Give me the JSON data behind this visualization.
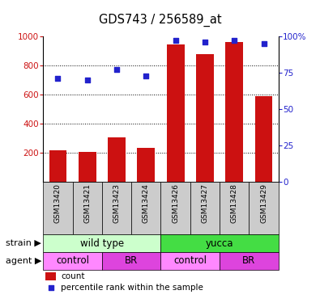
{
  "title": "GDS743 / 256589_at",
  "samples": [
    "GSM13420",
    "GSM13421",
    "GSM13423",
    "GSM13424",
    "GSM13426",
    "GSM13427",
    "GSM13428",
    "GSM13429"
  ],
  "counts": [
    215,
    205,
    305,
    235,
    945,
    880,
    960,
    590
  ],
  "percentile_ranks": [
    71,
    70,
    77,
    73,
    97,
    96,
    97,
    95
  ],
  "ylim_left": [
    0,
    1000
  ],
  "ylim_right": [
    0,
    100
  ],
  "yticks_left": [
    200,
    400,
    600,
    800,
    1000
  ],
  "yticks_right": [
    0,
    25,
    50,
    75,
    100
  ],
  "grid_lines": [
    200,
    400,
    600,
    800
  ],
  "strain_labels": [
    {
      "label": "wild type",
      "start": 0,
      "end": 4,
      "color": "#ccffcc"
    },
    {
      "label": "yucca",
      "start": 4,
      "end": 8,
      "color": "#44dd44"
    }
  ],
  "agent_labels": [
    {
      "label": "control",
      "start": 0,
      "end": 2,
      "color": "#ff88ff"
    },
    {
      "label": "BR",
      "start": 2,
      "end": 4,
      "color": "#dd44dd"
    },
    {
      "label": "control",
      "start": 4,
      "end": 6,
      "color": "#ff88ff"
    },
    {
      "label": "BR",
      "start": 6,
      "end": 8,
      "color": "#dd44dd"
    }
  ],
  "bar_color": "#cc1111",
  "dot_color": "#2222cc",
  "tick_color_left": "#cc1111",
  "tick_color_right": "#2222cc",
  "sample_bg_color": "#cccccc",
  "legend_count_color": "#cc1111",
  "legend_pct_color": "#2222cc",
  "bg_color": "#ffffff"
}
